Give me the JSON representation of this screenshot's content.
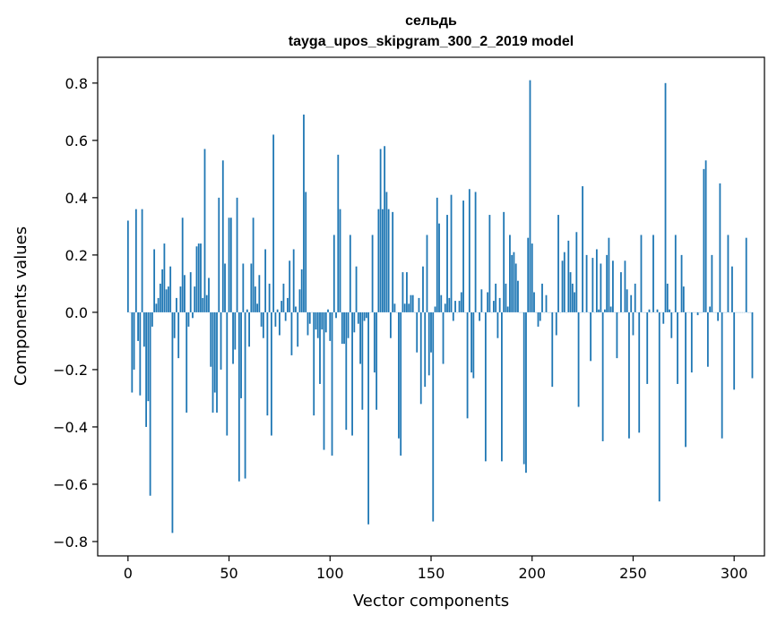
{
  "chart_data": {
    "type": "bar",
    "title": "сельдь",
    "subtitle": "tayga_upos_skipgram_300_2_2019 model",
    "xlabel": "Vector components",
    "ylabel": "Components values",
    "xlim": [
      -15,
      315
    ],
    "ylim": [
      -0.85,
      0.89
    ],
    "xticks": [
      0,
      50,
      100,
      150,
      200,
      250,
      300
    ],
    "yticks": [
      -0.8,
      -0.6,
      -0.4,
      -0.2,
      0.0,
      0.2,
      0.4,
      0.6,
      0.8
    ],
    "grid": false,
    "bar_color": "#1f77b4",
    "values": [
      0.32,
      0.0,
      -0.28,
      -0.2,
      0.36,
      -0.1,
      -0.29,
      0.36,
      -0.12,
      -0.4,
      -0.31,
      -0.64,
      -0.05,
      0.22,
      0.03,
      0.05,
      0.1,
      0.15,
      0.24,
      0.08,
      0.09,
      0.16,
      -0.77,
      -0.09,
      0.05,
      -0.16,
      0.09,
      0.33,
      0.13,
      -0.35,
      -0.05,
      0.14,
      -0.02,
      0.09,
      0.23,
      0.24,
      0.24,
      0.05,
      0.57,
      0.06,
      0.12,
      -0.19,
      -0.35,
      -0.28,
      -0.35,
      0.4,
      -0.2,
      0.53,
      0.17,
      -0.43,
      0.33,
      0.33,
      -0.18,
      -0.13,
      0.4,
      -0.59,
      -0.3,
      0.17,
      -0.58,
      0.01,
      -0.12,
      0.17,
      0.33,
      0.09,
      0.03,
      0.13,
      -0.05,
      -0.09,
      0.22,
      -0.36,
      0.1,
      -0.43,
      0.62,
      -0.05,
      0.01,
      -0.08,
      0.04,
      0.1,
      -0.03,
      0.05,
      0.18,
      -0.15,
      0.22,
      0.02,
      -0.12,
      0.08,
      0.15,
      0.69,
      0.42,
      -0.08,
      -0.04,
      0.0,
      -0.36,
      -0.06,
      -0.09,
      -0.25,
      -0.06,
      -0.48,
      -0.07,
      0.01,
      -0.1,
      -0.5,
      0.27,
      -0.02,
      0.55,
      0.36,
      -0.11,
      -0.11,
      -0.41,
      -0.09,
      0.27,
      -0.43,
      -0.07,
      0.16,
      -0.04,
      -0.18,
      -0.34,
      -0.03,
      -0.02,
      -0.74,
      0.0,
      0.27,
      -0.21,
      -0.34,
      0.36,
      0.57,
      0.36,
      0.58,
      0.42,
      0.36,
      -0.09,
      0.35,
      0.03,
      0.0,
      -0.44,
      -0.5,
      0.14,
      0.03,
      0.14,
      0.03,
      0.06,
      0.06,
      0.0,
      -0.14,
      0.05,
      -0.32,
      0.16,
      -0.26,
      0.27,
      -0.22,
      -0.14,
      -0.73,
      0.02,
      0.4,
      0.31,
      0.06,
      -0.18,
      0.03,
      0.34,
      0.05,
      0.41,
      -0.03,
      0.04,
      0.0,
      0.04,
      0.07,
      0.39,
      0.0,
      -0.37,
      0.43,
      -0.21,
      -0.23,
      0.42,
      0.0,
      -0.03,
      0.08,
      0.0,
      -0.52,
      0.07,
      0.34,
      0.0,
      0.04,
      0.1,
      -0.09,
      0.05,
      -0.52,
      0.35,
      0.1,
      0.02,
      0.27,
      0.2,
      0.21,
      0.17,
      0.11,
      0.0,
      0.0,
      -0.53,
      -0.56,
      0.26,
      0.81,
      0.24,
      0.07,
      0.0,
      -0.05,
      -0.03,
      0.1,
      0.0,
      0.06,
      0.0,
      0.0,
      -0.26,
      0.0,
      -0.08,
      0.34,
      0.0,
      0.18,
      0.21,
      0.0,
      0.25,
      0.14,
      0.1,
      0.07,
      0.28,
      -0.33,
      0.0,
      0.44,
      0.0,
      0.2,
      0.0,
      -0.17,
      0.19,
      0.0,
      0.22,
      0.01,
      0.17,
      -0.45,
      0.01,
      0.2,
      0.26,
      0.02,
      0.18,
      0.0,
      -0.16,
      0.0,
      0.14,
      0.0,
      0.18,
      0.08,
      -0.44,
      0.06,
      -0.08,
      0.1,
      0.0,
      -0.42,
      0.27,
      0.0,
      0.0,
      -0.25,
      0.01,
      0.0,
      0.27,
      0.0,
      0.01,
      -0.66,
      0.0,
      -0.04,
      0.8,
      0.1,
      0.01,
      -0.09,
      0.0,
      0.27,
      -0.25,
      0.0,
      0.2,
      0.09,
      -0.47,
      0.0,
      0.0,
      -0.21,
      0.0,
      0.0,
      -0.01,
      0.0,
      0.0,
      0.5,
      0.53,
      -0.19,
      0.02,
      0.2,
      0.0,
      0.0,
      -0.03,
      0.45,
      -0.44,
      0.0,
      0.0,
      0.27,
      0.0,
      0.16,
      -0.27,
      0.0,
      0.0,
      0.0,
      0.0,
      0.0,
      0.26,
      0.0,
      0.0,
      -0.23
    ]
  }
}
